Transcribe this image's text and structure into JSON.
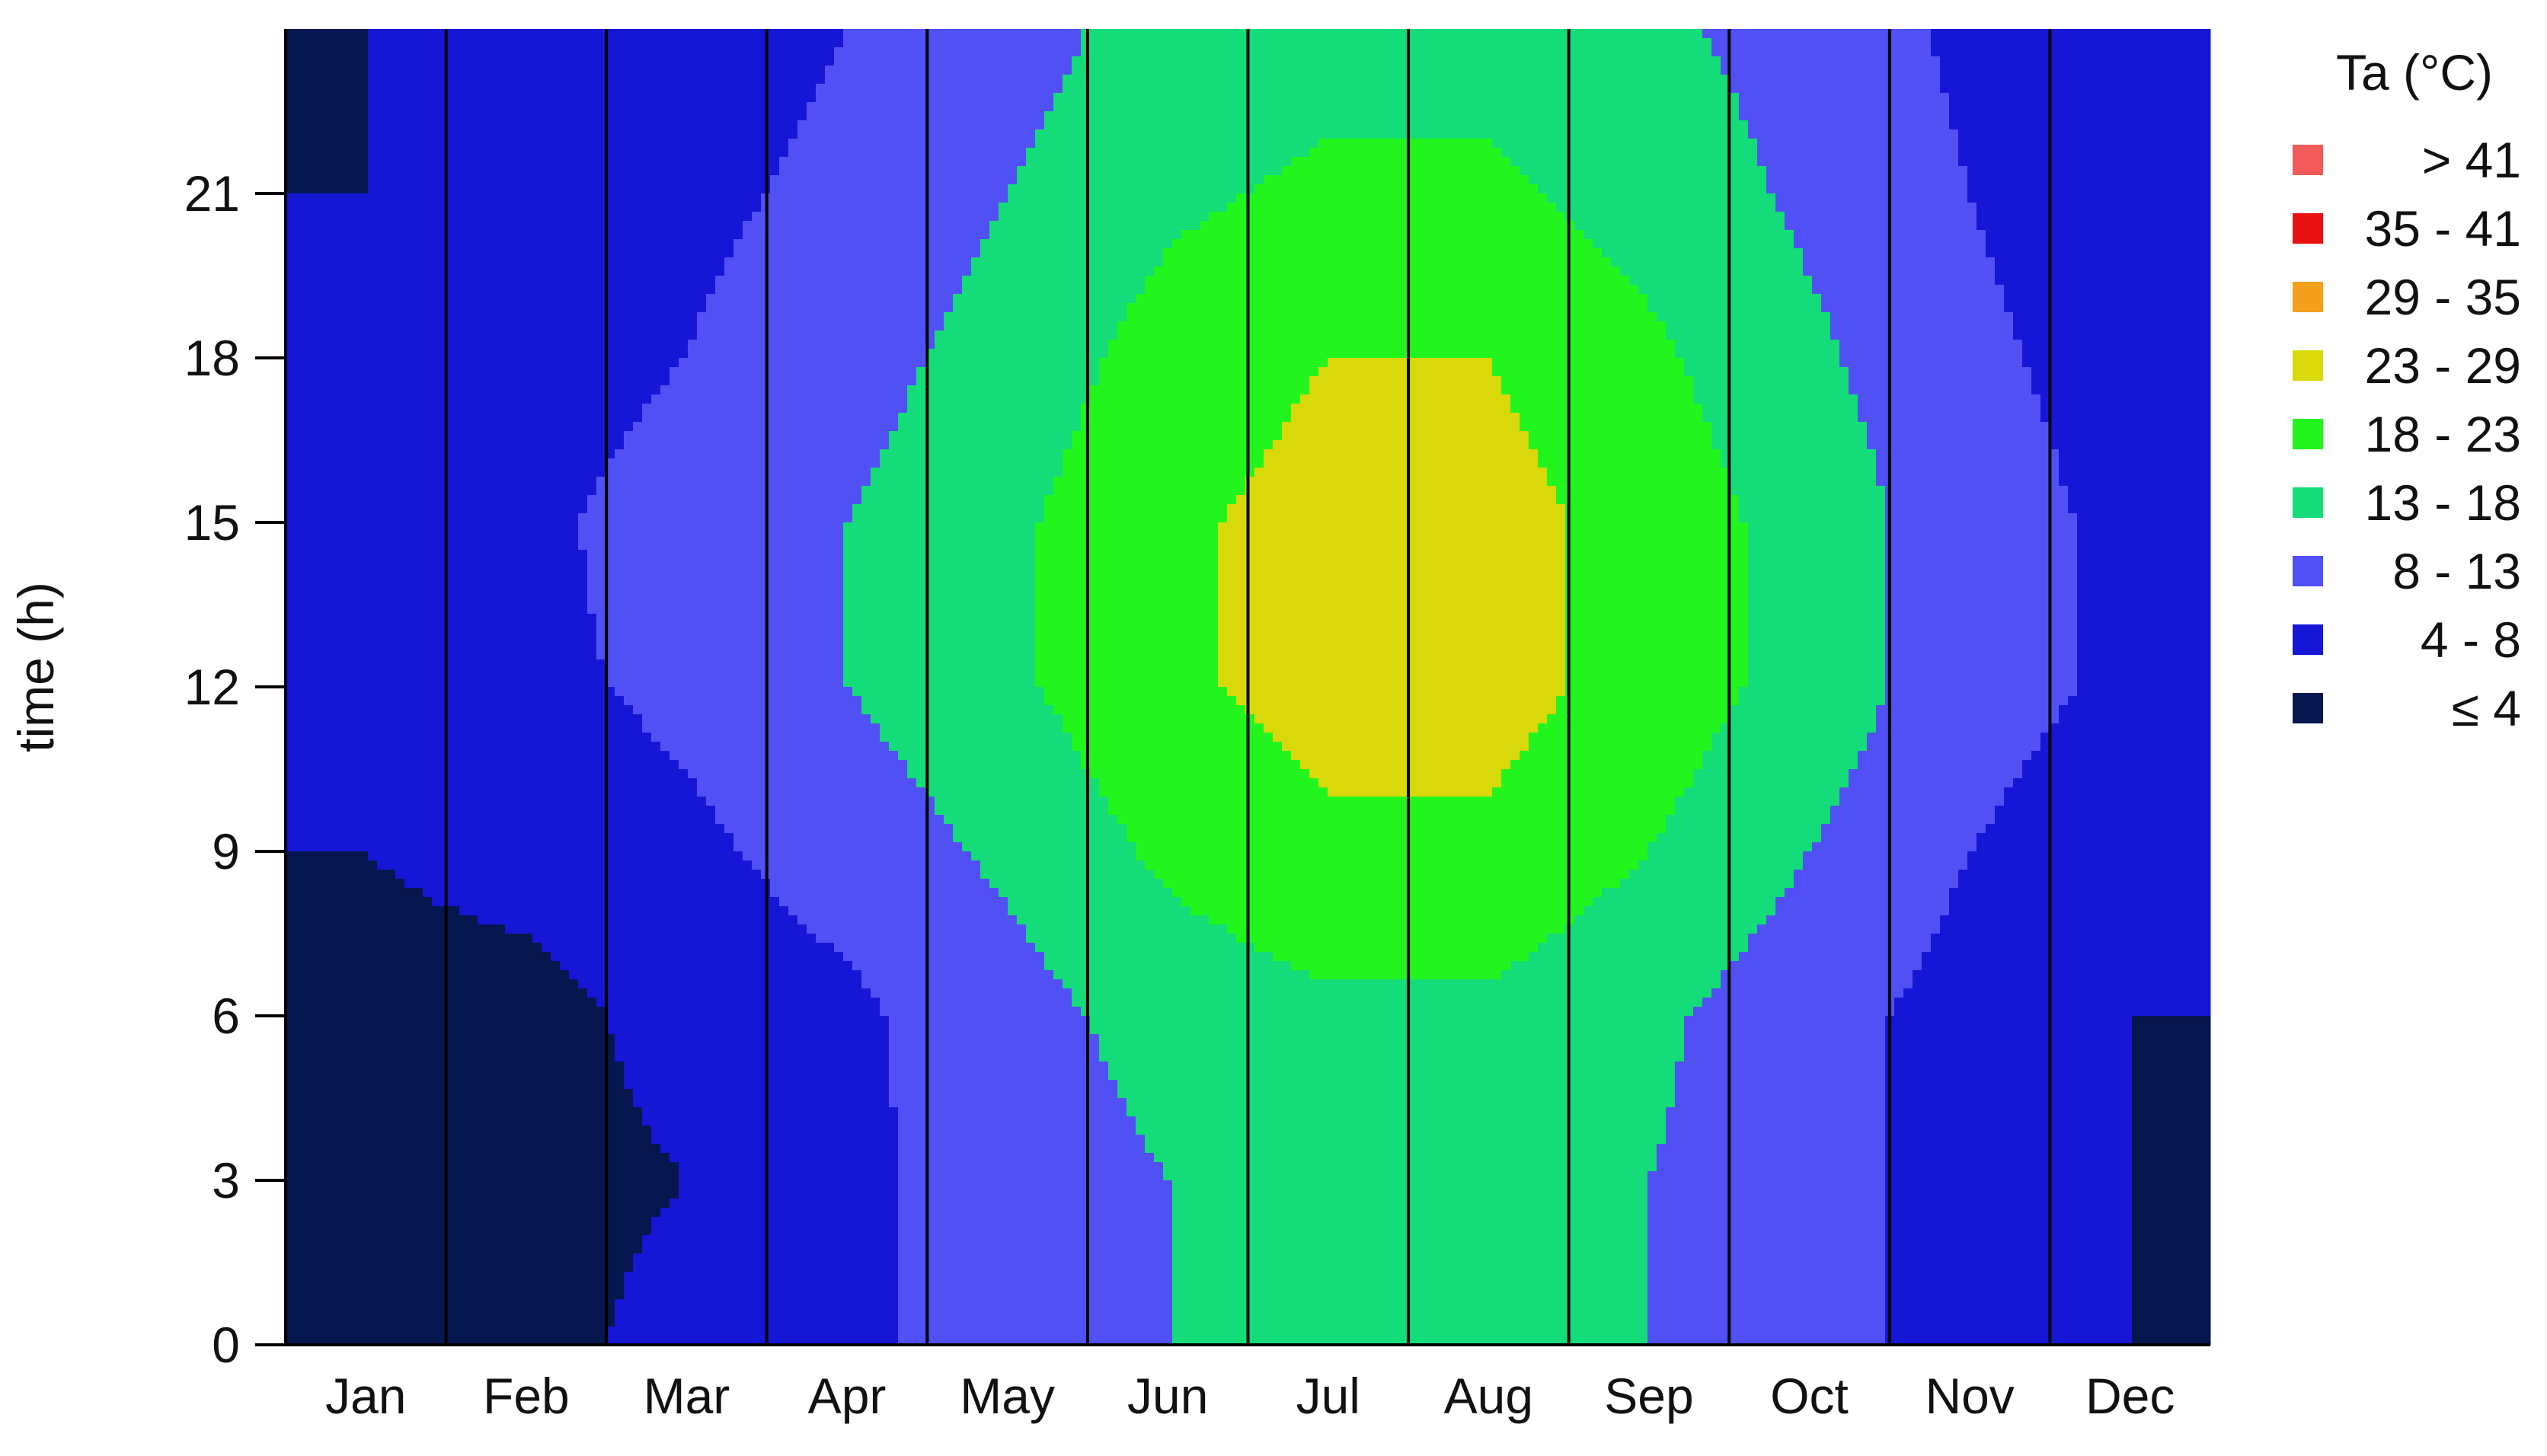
{
  "chart_data": {
    "type": "heatmap",
    "subtype": "filled-contour",
    "title": "",
    "xlabel": "",
    "ylabel": "time (h)",
    "x_categories": [
      "Jan",
      "Feb",
      "Mar",
      "Apr",
      "May",
      "Jun",
      "Jul",
      "Aug",
      "Sep",
      "Oct",
      "Nov",
      "Dec"
    ],
    "y_ticks": [
      0,
      3,
      6,
      9,
      12,
      15,
      18,
      21
    ],
    "ylim": [
      0,
      24
    ],
    "grid": false,
    "month_separators": true,
    "legend": {
      "title": "Ta (°C)",
      "placement": "right",
      "entries": [
        {
          "label": "> 41",
          "color": "#f25a5a"
        },
        {
          "label": "35 - 41",
          "color": "#e81010"
        },
        {
          "label": "29 - 35",
          "color": "#f5a01c"
        },
        {
          "label": "23 - 29",
          "color": "#d8d80a"
        },
        {
          "label": "18 - 23",
          "color": "#22f51e"
        },
        {
          "label": "13 - 18",
          "color": "#14dc78"
        },
        {
          "label": "8 - 13",
          "color": "#5050f5"
        },
        {
          "label": "4 - 8",
          "color": "#1616d6"
        },
        {
          "label": "≤ 4",
          "color": "#06164e"
        }
      ]
    },
    "temperature_by_month_and_hour": {
      "hours": [
        0,
        3,
        6,
        9,
        12,
        15,
        18,
        21,
        24
      ],
      "months": [
        {
          "month": "Jan",
          "values": [
            3,
            3,
            3,
            4,
            6,
            6,
            5,
            4,
            4
          ]
        },
        {
          "month": "Feb",
          "values": [
            3,
            3,
            3,
            5,
            7,
            7,
            6,
            5,
            4
          ]
        },
        {
          "month": "Mar",
          "values": [
            5,
            4,
            5,
            7,
            9,
            10,
            8,
            7,
            6
          ]
        },
        {
          "month": "Apr",
          "values": [
            7,
            7,
            7,
            10,
            13,
            13,
            11,
            9,
            8
          ]
        },
        {
          "month": "May",
          "values": [
            10,
            10,
            11,
            14,
            17,
            17,
            15,
            13,
            11
          ]
        },
        {
          "month": "Jun",
          "values": [
            13,
            13,
            15,
            19,
            22,
            22,
            20,
            17,
            15
          ]
        },
        {
          "month": "Jul",
          "values": [
            15,
            15,
            17,
            22,
            25,
            25,
            23,
            19,
            16
          ]
        },
        {
          "month": "Aug",
          "values": [
            15,
            15,
            17,
            22,
            25,
            25,
            23,
            19,
            16
          ]
        },
        {
          "month": "Sep",
          "values": [
            13,
            13,
            14,
            18,
            21,
            21,
            19,
            16,
            14
          ]
        },
        {
          "month": "Oct",
          "values": [
            10,
            10,
            10,
            13,
            16,
            16,
            14,
            12,
            11
          ]
        },
        {
          "month": "Nov",
          "values": [
            6,
            6,
            6,
            8,
            10,
            10,
            9,
            8,
            7
          ]
        },
        {
          "month": "Dec",
          "values": [
            4,
            4,
            4,
            5,
            7,
            7,
            6,
            5,
            4
          ]
        }
      ]
    }
  }
}
